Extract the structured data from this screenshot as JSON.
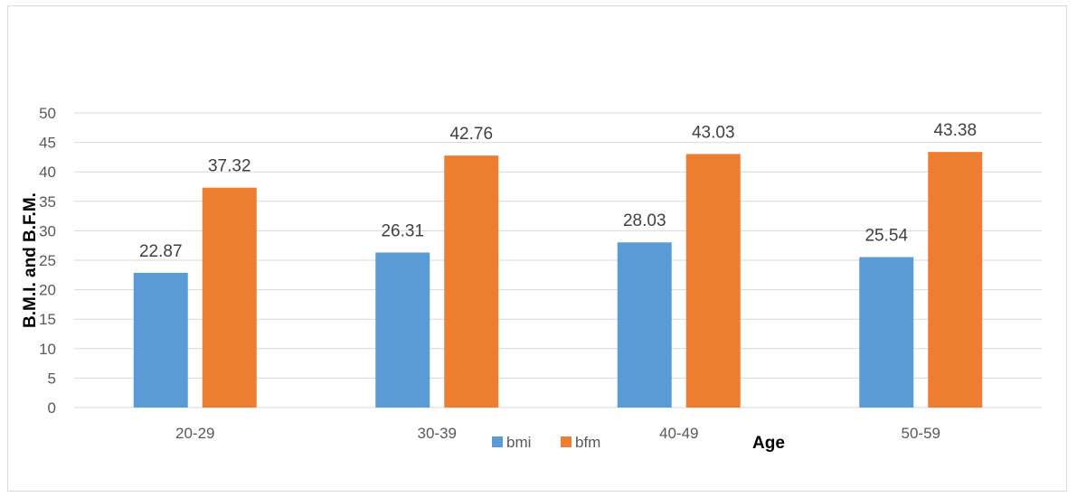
{
  "chart_data": {
    "type": "bar",
    "categories": [
      "20-29",
      "30-39",
      "40-49",
      "50-59"
    ],
    "series": [
      {
        "name": "bmi",
        "values": [
          22.87,
          26.31,
          28.03,
          25.54
        ],
        "color": "#5b9bd5"
      },
      {
        "name": "bfm",
        "values": [
          37.32,
          42.76,
          43.03,
          43.38
        ],
        "color": "#ed7d31"
      }
    ],
    "data_labels": [
      [
        "22.87",
        "26.31",
        "28.03",
        "25.54"
      ],
      [
        "37.32",
        "42.76",
        "43.03",
        "43.38"
      ]
    ],
    "title": "",
    "xlabel": "Age",
    "ylabel": "B.M.I. and  B.F.M.",
    "ylim": [
      0,
      50
    ],
    "yticks": [
      0,
      5,
      10,
      15,
      20,
      25,
      30,
      35,
      40,
      45,
      50
    ],
    "ytick_labels": [
      "0",
      "5",
      "10",
      "15",
      "20",
      "25",
      "30",
      "35",
      "40",
      "45",
      "50"
    ],
    "grid": true,
    "legend_position": "bottom"
  }
}
